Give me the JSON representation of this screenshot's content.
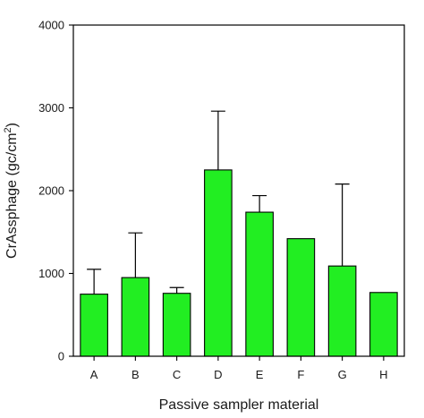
{
  "chart_data": {
    "type": "bar",
    "title": "",
    "xlabel": "Passive sampler material",
    "ylabel": {
      "base": "CrAssphage (gc/cm",
      "superscript": "2",
      "close": ")"
    },
    "categories": [
      "A",
      "B",
      "C",
      "D",
      "E",
      "F",
      "G",
      "H"
    ],
    "values": [
      750,
      950,
      760,
      2250,
      1740,
      1420,
      1090,
      770
    ],
    "error_upper": [
      300,
      540,
      70,
      710,
      200,
      0,
      990,
      0
    ],
    "ylim": [
      0,
      4000
    ],
    "yticks": [
      0,
      1000,
      2000,
      3000,
      4000
    ],
    "ytick_labels": [
      "0",
      "1000",
      "2000",
      "3000",
      "4000"
    ],
    "bar_color": "#22ee22",
    "bar_edge_color": "#000000",
    "error_bar_color": "#000000",
    "grid": false,
    "legend": "none"
  }
}
